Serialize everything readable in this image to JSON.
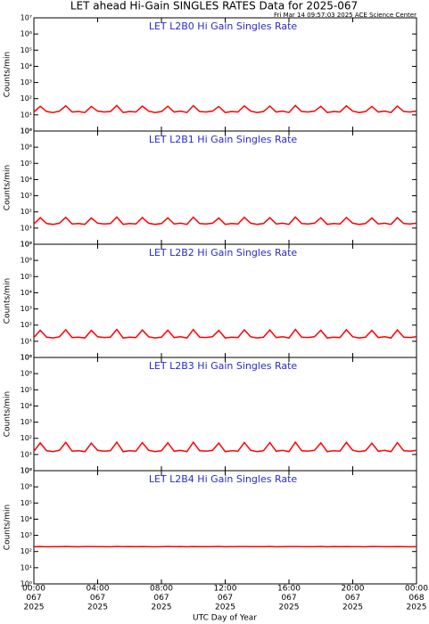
{
  "chart_data": {
    "type": "line",
    "title": "LET ahead Hi-Gain SINGLES RATES Data for 2025-067",
    "subtitle": "Fri Mar 14 09:57:03 2025 ACE Science Center",
    "xlabel": "UTC Day of Year",
    "ylabel": "Counts/min",
    "log_y": true,
    "xlim": [
      0,
      24
    ],
    "xticks": [
      {
        "value": 0,
        "label": [
          "00:00",
          "067",
          "2025"
        ]
      },
      {
        "value": 4,
        "label": [
          "04:00",
          "067",
          "2025"
        ]
      },
      {
        "value": 8,
        "label": [
          "08:00",
          "067",
          "2025"
        ]
      },
      {
        "value": 12,
        "label": [
          "12:00",
          "067",
          "2025"
        ]
      },
      {
        "value": 16,
        "label": [
          "16:00",
          "067",
          "2025"
        ]
      },
      {
        "value": 20,
        "label": [
          "20:00",
          "067",
          "2025"
        ]
      },
      {
        "value": 24,
        "label": [
          "00:00",
          "068",
          "2025"
        ]
      }
    ],
    "ylim": [
      1,
      10000000
    ],
    "yticks": [
      {
        "value": 1,
        "label": "10⁰"
      },
      {
        "value": 10,
        "label": "10¹"
      },
      {
        "value": 100,
        "label": "10²"
      },
      {
        "value": 1000,
        "label": "10³"
      },
      {
        "value": 10000,
        "label": "10⁴"
      },
      {
        "value": 100000,
        "label": "10⁵"
      },
      {
        "value": 1000000,
        "label": "10⁶"
      },
      {
        "value": 10000000,
        "label": "10⁷"
      }
    ],
    "x": [
      0,
      0.4,
      0.8,
      1.2,
      1.6,
      2,
      2.4,
      2.8,
      3.2,
      3.6,
      4,
      4.4,
      4.8,
      5.2,
      5.6,
      6,
      6.4,
      6.8,
      7.2,
      7.6,
      8,
      8.4,
      8.8,
      9.2,
      9.6,
      10,
      10.4,
      10.8,
      11.2,
      11.6,
      12,
      12.4,
      12.8,
      13.2,
      13.6,
      14,
      14.4,
      14.8,
      15.2,
      15.6,
      16,
      16.4,
      16.8,
      17.2,
      17.6,
      18,
      18.4,
      18.8,
      19.2,
      19.6,
      20,
      20.4,
      20.8,
      21.2,
      21.6,
      22,
      22.4,
      22.8,
      23.2,
      23.6,
      24
    ],
    "series": [
      {
        "name": "LET L2B0 Hi Gain Singles Rate",
        "color": "#ff0000",
        "values": [
          15,
          34,
          16,
          14,
          17,
          36,
          15,
          16,
          14,
          33,
          17,
          15,
          16,
          38,
          14,
          16,
          15,
          35,
          17,
          14,
          16,
          34,
          15,
          17,
          14,
          37,
          16,
          15,
          17,
          33,
          14,
          16,
          15,
          36,
          17,
          14,
          16,
          35,
          15,
          17,
          14,
          38,
          16,
          15,
          17,
          34,
          14,
          16,
          15,
          36,
          17,
          14,
          16,
          33,
          15,
          17,
          14,
          35,
          16,
          15,
          17
        ]
      },
      {
        "name": "LET L2B1 Hi Gain Singles Rate",
        "color": "#ff0000",
        "values": [
          18,
          44,
          19,
          17,
          20,
          46,
          18,
          19,
          17,
          42,
          20,
          18,
          19,
          48,
          17,
          19,
          18,
          45,
          20,
          17,
          19,
          43,
          18,
          20,
          17,
          47,
          19,
          18,
          20,
          42,
          17,
          19,
          18,
          46,
          20,
          17,
          19,
          44,
          18,
          20,
          17,
          48,
          19,
          18,
          20,
          43,
          17,
          19,
          18,
          45,
          20,
          17,
          19,
          42,
          18,
          20,
          17,
          44,
          19,
          18,
          20
        ]
      },
      {
        "name": "LET L2B2 Hi Gain Singles Rate",
        "color": "#ff0000",
        "values": [
          17,
          48,
          18,
          16,
          19,
          52,
          17,
          18,
          16,
          47,
          19,
          17,
          18,
          54,
          16,
          18,
          17,
          50,
          19,
          16,
          18,
          49,
          17,
          19,
          16,
          53,
          18,
          17,
          19,
          47,
          16,
          18,
          17,
          51,
          19,
          16,
          18,
          50,
          17,
          19,
          16,
          54,
          18,
          17,
          19,
          48,
          16,
          18,
          17,
          52,
          19,
          16,
          18,
          47,
          17,
          19,
          16,
          50,
          18,
          17,
          19
        ]
      },
      {
        "name": "LET L2B3 Hi Gain Singles Rate",
        "color": "#ff0000",
        "values": [
          16,
          52,
          17,
          15,
          18,
          56,
          16,
          17,
          15,
          50,
          18,
          16,
          17,
          58,
          15,
          17,
          16,
          54,
          18,
          15,
          17,
          53,
          16,
          18,
          15,
          57,
          17,
          16,
          18,
          51,
          15,
          17,
          16,
          55,
          18,
          15,
          17,
          54,
          16,
          18,
          15,
          58,
          17,
          16,
          18,
          52,
          15,
          17,
          16,
          56,
          18,
          15,
          17,
          50,
          16,
          18,
          15,
          54,
          17,
          16,
          18
        ]
      },
      {
        "name": "LET L2B4 Hi Gain Singles Rate",
        "color": "#ff0000",
        "values": [
          200,
          204,
          198,
          201,
          199,
          205,
          200,
          197,
          202,
          203,
          199,
          201,
          198,
          206,
          200,
          202,
          199,
          204,
          201,
          198,
          200,
          205,
          199,
          202,
          198,
          203,
          201,
          200,
          199,
          206,
          198,
          201,
          202,
          204,
          200,
          199,
          201,
          205,
          198,
          200,
          202,
          203,
          199,
          201,
          200,
          206,
          198,
          202,
          199,
          204,
          201,
          200,
          198,
          205,
          202,
          199,
          201,
          203,
          200,
          198,
          201
        ]
      }
    ]
  }
}
